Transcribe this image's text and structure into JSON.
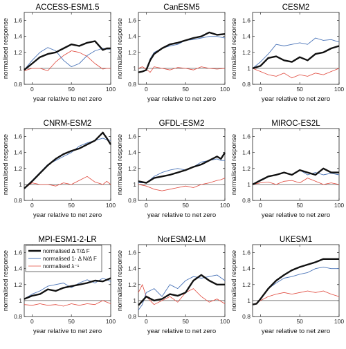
{
  "figure": {
    "xlabel": "year relative to net zero",
    "ylabel": "normalised response"
  },
  "chart_data": [
    {
      "type": "line",
      "title": "ACCESS-ESM1.5",
      "xlim": [
        -10,
        100
      ],
      "ylim": [
        0.8,
        1.7
      ],
      "xticks": [
        0,
        50,
        100
      ],
      "yticks": [
        0.8,
        1,
        1.2,
        1.4,
        1.6
      ],
      "reference_line": 1,
      "series": [
        {
          "key": "dT",
          "color": "#111111",
          "x": [
            -10,
            0,
            10,
            20,
            30,
            40,
            50,
            60,
            70,
            80,
            90,
            95,
            100
          ],
          "values": [
            0.98,
            1.06,
            1.14,
            1.18,
            1.2,
            1.25,
            1.3,
            1.28,
            1.32,
            1.34,
            1.23,
            1.25,
            1.25
          ]
        },
        {
          "key": "dN",
          "color": "#4a74b8",
          "x": [
            -10,
            0,
            10,
            20,
            30,
            40,
            50,
            60,
            70,
            80,
            90,
            95,
            100
          ],
          "values": [
            0.98,
            1.1,
            1.2,
            1.26,
            1.22,
            1.1,
            1.02,
            1.06,
            1.16,
            1.22,
            1.25,
            1.24,
            1.24
          ]
        },
        {
          "key": "lam",
          "color": "#e0463a",
          "x": [
            -10,
            0,
            10,
            20,
            30,
            40,
            50,
            60,
            70,
            80,
            90,
            95,
            100
          ],
          "values": [
            0.97,
            1.0,
            1.0,
            0.97,
            1.08,
            1.16,
            1.22,
            1.2,
            1.15,
            1.06,
            0.99,
            1.0,
            1.0
          ]
        }
      ]
    },
    {
      "type": "line",
      "title": "CanESM5",
      "xlim": [
        -10,
        100
      ],
      "ylim": [
        0.8,
        1.7
      ],
      "xticks": [
        0,
        50,
        100
      ],
      "yticks": [
        0.8,
        1,
        1.2,
        1.4,
        1.6
      ],
      "reference_line": 1,
      "series": [
        {
          "key": "dT",
          "color": "#111111",
          "x": [
            -10,
            -5,
            0,
            5,
            10,
            20,
            30,
            40,
            50,
            60,
            70,
            80,
            90,
            100
          ],
          "values": [
            0.95,
            0.96,
            0.98,
            1.1,
            1.18,
            1.25,
            1.3,
            1.32,
            1.35,
            1.38,
            1.4,
            1.45,
            1.42,
            1.43
          ]
        },
        {
          "key": "dN",
          "color": "#4a74b8",
          "x": [
            -10,
            -5,
            0,
            5,
            10,
            20,
            30,
            40,
            50,
            60,
            70,
            80,
            90,
            100
          ],
          "values": [
            0.95,
            0.96,
            0.98,
            1.12,
            1.2,
            1.25,
            1.28,
            1.3,
            1.35,
            1.36,
            1.38,
            1.4,
            1.4,
            1.38
          ]
        },
        {
          "key": "lam",
          "color": "#e0463a",
          "x": [
            -10,
            -5,
            0,
            5,
            10,
            20,
            30,
            40,
            50,
            60,
            70,
            80,
            90,
            100
          ],
          "values": [
            1.0,
            1.02,
            0.99,
            0.95,
            1.02,
            1.0,
            0.98,
            1.01,
            1.0,
            0.98,
            1.02,
            1.0,
            0.99,
            1.0
          ]
        }
      ]
    },
    {
      "type": "line",
      "title": "CESM2",
      "xlim": [
        -10,
        100
      ],
      "ylim": [
        0.8,
        1.7
      ],
      "xticks": [
        0,
        50,
        100
      ],
      "yticks": [
        0.8,
        1,
        1.2,
        1.4,
        1.6
      ],
      "reference_line": 1,
      "series": [
        {
          "key": "dT",
          "color": "#111111",
          "x": [
            -10,
            0,
            10,
            20,
            30,
            40,
            50,
            60,
            70,
            80,
            90,
            100
          ],
          "values": [
            1.0,
            1.03,
            1.13,
            1.15,
            1.1,
            1.08,
            1.14,
            1.1,
            1.18,
            1.2,
            1.25,
            1.28
          ]
        },
        {
          "key": "dN",
          "color": "#4a74b8",
          "x": [
            -10,
            0,
            10,
            20,
            30,
            40,
            50,
            60,
            70,
            80,
            90,
            100
          ],
          "values": [
            1.0,
            1.08,
            1.18,
            1.3,
            1.28,
            1.3,
            1.32,
            1.3,
            1.38,
            1.35,
            1.36,
            1.33
          ]
        },
        {
          "key": "lam",
          "color": "#e0463a",
          "x": [
            -10,
            0,
            10,
            20,
            30,
            40,
            50,
            60,
            70,
            80,
            90,
            100
          ],
          "values": [
            1.0,
            0.96,
            0.92,
            0.9,
            0.94,
            0.88,
            0.92,
            0.9,
            0.94,
            0.92,
            0.96,
            1.0
          ]
        }
      ]
    },
    {
      "type": "line",
      "title": "CNRM-ESM2",
      "xlim": [
        -10,
        100
      ],
      "ylim": [
        0.8,
        1.7
      ],
      "xticks": [
        0,
        50,
        100
      ],
      "yticks": [
        0.8,
        1,
        1.2,
        1.4,
        1.6
      ],
      "reference_line": 1,
      "series": [
        {
          "key": "dT",
          "color": "#111111",
          "x": [
            -10,
            0,
            10,
            20,
            30,
            40,
            50,
            60,
            70,
            80,
            90,
            95,
            100
          ],
          "values": [
            0.95,
            1.04,
            1.14,
            1.24,
            1.32,
            1.38,
            1.42,
            1.45,
            1.5,
            1.55,
            1.65,
            1.58,
            1.5
          ]
        },
        {
          "key": "dN",
          "color": "#4a74b8",
          "x": [
            -10,
            0,
            10,
            20,
            30,
            40,
            50,
            60,
            70,
            80,
            90,
            95,
            100
          ],
          "values": [
            0.95,
            1.05,
            1.15,
            1.25,
            1.3,
            1.35,
            1.4,
            1.48,
            1.52,
            1.55,
            1.58,
            1.56,
            1.55
          ]
        },
        {
          "key": "lam",
          "color": "#e0463a",
          "x": [
            -10,
            0,
            10,
            20,
            30,
            40,
            50,
            60,
            70,
            80,
            90,
            95,
            100
          ],
          "values": [
            0.95,
            1.02,
            1.0,
            1.0,
            0.98,
            1.02,
            1.0,
            1.05,
            1.1,
            1.03,
            1.0,
            1.04,
            1.0
          ]
        }
      ]
    },
    {
      "type": "line",
      "title": "GFDL-ESM2",
      "xlim": [
        -10,
        100
      ],
      "ylim": [
        0.8,
        1.7
      ],
      "xticks": [
        0,
        50,
        100
      ],
      "yticks": [
        0.8,
        1,
        1.2,
        1.4,
        1.6
      ],
      "reference_line": 1,
      "series": [
        {
          "key": "dT",
          "color": "#111111",
          "x": [
            -10,
            0,
            10,
            20,
            30,
            40,
            50,
            60,
            70,
            80,
            90,
            95,
            100
          ],
          "values": [
            1.04,
            1.02,
            1.08,
            1.1,
            1.12,
            1.15,
            1.18,
            1.22,
            1.25,
            1.3,
            1.35,
            1.32,
            1.4
          ]
        },
        {
          "key": "dN",
          "color": "#4a74b8",
          "x": [
            -10,
            0,
            10,
            20,
            30,
            40,
            50,
            60,
            70,
            80,
            90,
            95,
            100
          ],
          "values": [
            1.02,
            1.02,
            1.1,
            1.15,
            1.18,
            1.2,
            1.18,
            1.22,
            1.28,
            1.3,
            1.32,
            1.3,
            1.3
          ]
        },
        {
          "key": "lam",
          "color": "#e0463a",
          "x": [
            -10,
            0,
            10,
            20,
            30,
            40,
            50,
            60,
            70,
            80,
            90,
            95,
            100
          ],
          "values": [
            1.0,
            0.98,
            0.94,
            0.92,
            0.94,
            0.96,
            0.98,
            0.96,
            1.0,
            1.02,
            1.05,
            1.06,
            1.08
          ]
        }
      ]
    },
    {
      "type": "line",
      "title": "MIROC-ES2L",
      "xlim": [
        -10,
        100
      ],
      "ylim": [
        0.8,
        1.7
      ],
      "xticks": [
        0,
        50,
        100
      ],
      "yticks": [
        0.8,
        1,
        1.2,
        1.4,
        1.6
      ],
      "reference_line": 1,
      "series": [
        {
          "key": "dT",
          "color": "#111111",
          "x": [
            -10,
            0,
            10,
            20,
            30,
            40,
            50,
            60,
            70,
            80,
            90,
            100
          ],
          "values": [
            1.0,
            1.05,
            1.1,
            1.12,
            1.15,
            1.12,
            1.18,
            1.15,
            1.12,
            1.2,
            1.15,
            1.15
          ]
        },
        {
          "key": "dN",
          "color": "#4a74b8",
          "x": [
            -10,
            0,
            10,
            20,
            30,
            40,
            50,
            60,
            70,
            80,
            90,
            100
          ],
          "values": [
            1.0,
            1.06,
            1.1,
            1.12,
            1.15,
            1.12,
            1.18,
            1.12,
            1.15,
            1.12,
            1.14,
            1.12
          ]
        },
        {
          "key": "lam",
          "color": "#e0463a",
          "x": [
            -10,
            0,
            10,
            20,
            30,
            40,
            50,
            60,
            70,
            80,
            90,
            100
          ],
          "values": [
            1.0,
            1.02,
            1.03,
            1.0,
            1.04,
            1.05,
            1.02,
            1.08,
            1.04,
            1.0,
            1.02,
            1.0
          ]
        }
      ]
    },
    {
      "type": "line",
      "title": "MPI-ESM1-2-LR",
      "xlim": [
        -10,
        100
      ],
      "ylim": [
        0.8,
        1.7
      ],
      "xticks": [
        0,
        50,
        100
      ],
      "yticks": [
        0.8,
        1,
        1.2,
        1.4,
        1.6
      ],
      "reference_line": 1,
      "legend": {
        "position": "top",
        "entries": [
          {
            "key": "dT",
            "label": "normalised  Δ T/Δ F",
            "color": "#111111"
          },
          {
            "key": "dN",
            "label": "normalised 1- Δ N/Δ F",
            "color": "#4a74b8"
          },
          {
            "key": "lam",
            "label": "normalised λ⁻¹",
            "color": "#e0463a"
          }
        ]
      },
      "series": [
        {
          "key": "dT",
          "color": "#111111",
          "x": [
            -10,
            0,
            10,
            20,
            30,
            40,
            50,
            60,
            70,
            80,
            90,
            100
          ],
          "values": [
            1.02,
            1.06,
            1.08,
            1.14,
            1.12,
            1.16,
            1.18,
            1.2,
            1.22,
            1.25,
            1.24,
            1.28
          ]
        },
        {
          "key": "dN",
          "color": "#4a74b8",
          "x": [
            -10,
            0,
            10,
            20,
            30,
            40,
            50,
            60,
            70,
            80,
            90,
            100
          ],
          "values": [
            1.02,
            1.08,
            1.12,
            1.18,
            1.2,
            1.22,
            1.16,
            1.22,
            1.26,
            1.22,
            1.28,
            1.24
          ]
        },
        {
          "key": "lam",
          "color": "#e0463a",
          "x": [
            -10,
            0,
            10,
            20,
            30,
            40,
            50,
            60,
            70,
            80,
            90,
            100
          ],
          "values": [
            0.95,
            0.94,
            0.96,
            0.94,
            0.95,
            0.93,
            0.96,
            0.94,
            0.96,
            0.95,
            1.0,
            0.96
          ]
        }
      ]
    },
    {
      "type": "line",
      "title": "NorESM2-LM",
      "xlim": [
        -10,
        100
      ],
      "ylim": [
        0.8,
        1.7
      ],
      "xticks": [
        0,
        50,
        100
      ],
      "yticks": [
        0.8,
        1,
        1.2,
        1.4,
        1.6
      ],
      "reference_line": 1,
      "series": [
        {
          "key": "dT",
          "color": "#111111",
          "x": [
            -10,
            0,
            10,
            20,
            30,
            40,
            50,
            60,
            70,
            80,
            90,
            100
          ],
          "values": [
            0.94,
            1.05,
            1.0,
            1.02,
            1.08,
            1.06,
            1.1,
            1.25,
            1.32,
            1.25,
            1.2,
            1.2
          ]
        },
        {
          "key": "dN",
          "color": "#4a74b8",
          "x": [
            -10,
            -5,
            0,
            10,
            20,
            30,
            40,
            50,
            60,
            70,
            80,
            90,
            100
          ],
          "values": [
            0.88,
            0.95,
            1.1,
            1.15,
            1.05,
            1.2,
            1.15,
            1.25,
            1.3,
            1.28,
            1.3,
            1.32,
            1.25
          ]
        },
        {
          "key": "lam",
          "color": "#e0463a",
          "x": [
            -10,
            -5,
            0,
            10,
            20,
            30,
            40,
            50,
            60,
            70,
            80,
            90,
            100
          ],
          "values": [
            1.1,
            1.2,
            1.05,
            0.95,
            1.0,
            1.05,
            0.98,
            1.1,
            1.15,
            1.05,
            0.98,
            1.02,
            0.96
          ]
        }
      ]
    },
    {
      "type": "line",
      "title": "UKESM1",
      "xlim": [
        -10,
        100
      ],
      "ylim": [
        0.8,
        1.7
      ],
      "xticks": [
        0,
        50,
        100
      ],
      "yticks": [
        0.8,
        1,
        1.2,
        1.4,
        1.6
      ],
      "reference_line": 1,
      "series": [
        {
          "key": "dT",
          "color": "#111111",
          "x": [
            -10,
            -5,
            0,
            10,
            20,
            30,
            40,
            50,
            60,
            70,
            80,
            90,
            100
          ],
          "values": [
            0.95,
            0.96,
            1.02,
            1.15,
            1.25,
            1.32,
            1.38,
            1.42,
            1.45,
            1.48,
            1.52,
            1.52,
            1.52
          ]
        },
        {
          "key": "dN",
          "color": "#4a74b8",
          "x": [
            -10,
            -5,
            0,
            10,
            20,
            30,
            40,
            50,
            60,
            70,
            80,
            90,
            100
          ],
          "values": [
            0.95,
            0.96,
            1.02,
            1.15,
            1.22,
            1.28,
            1.3,
            1.33,
            1.35,
            1.4,
            1.42,
            1.4,
            1.4
          ]
        },
        {
          "key": "lam",
          "color": "#e0463a",
          "x": [
            -10,
            -5,
            0,
            10,
            20,
            30,
            40,
            50,
            60,
            70,
            80,
            90,
            100
          ],
          "values": [
            0.95,
            0.97,
            1.0,
            1.05,
            1.08,
            1.1,
            1.08,
            1.1,
            1.12,
            1.1,
            1.12,
            1.08,
            1.05
          ]
        }
      ]
    }
  ]
}
